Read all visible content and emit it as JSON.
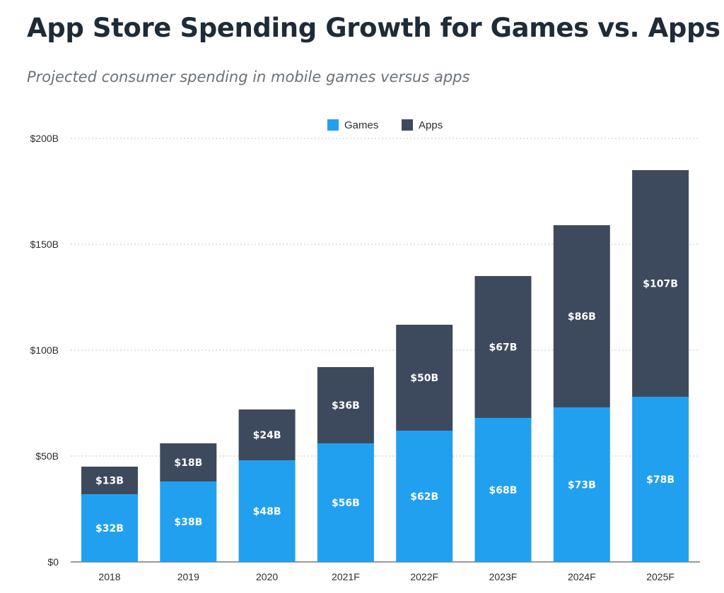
{
  "chart_data": {
    "type": "bar",
    "stacked": true,
    "title": "App Store Spending Growth for Games vs. Apps",
    "subtitle": "Projected consumer spending in mobile games versus apps",
    "categories": [
      "2018",
      "2019",
      "2020",
      "2021F",
      "2022F",
      "2023F",
      "2024F",
      "2025F"
    ],
    "series": [
      {
        "name": "Games",
        "color": "#21a0f0",
        "values": [
          32,
          38,
          48,
          56,
          62,
          68,
          73,
          78
        ],
        "labels": [
          "$32B",
          "$38B",
          "$48B",
          "$56B",
          "$62B",
          "$68B",
          "$73B",
          "$78B"
        ]
      },
      {
        "name": "Apps",
        "color": "#3d4a5e",
        "values": [
          13,
          18,
          24,
          36,
          50,
          67,
          86,
          107
        ],
        "labels": [
          "$13B",
          "$18B",
          "$24B",
          "$36B",
          "$50B",
          "$67B",
          "$86B",
          "$107B"
        ]
      }
    ],
    "ylim": [
      0,
      200
    ],
    "yticks": [
      0,
      50,
      100,
      150,
      200
    ],
    "ytick_labels": [
      "$0",
      "$50B",
      "$100B",
      "$150B",
      "$200B"
    ],
    "xlabel": "",
    "ylabel": "",
    "grid": true,
    "legend_position": "top-center"
  }
}
